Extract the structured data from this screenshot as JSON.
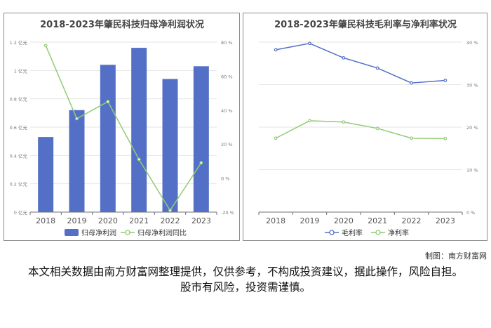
{
  "chart_data": [
    {
      "type": "bar+line",
      "title": "2018-2023年肇民科技归母净利润状况",
      "categories": [
        "2018",
        "2019",
        "2020",
        "2021",
        "2022",
        "2023"
      ],
      "series": [
        {
          "name": "归母净利润",
          "kind": "bar",
          "axis": "left",
          "values": [
            0.53,
            0.72,
            1.04,
            1.16,
            0.94,
            1.03
          ]
        },
        {
          "name": "归母净利润同比",
          "kind": "line",
          "axis": "right",
          "values": [
            78,
            35,
            45,
            11,
            -19,
            9
          ]
        }
      ],
      "ylim_left": [
        0,
        1.2
      ],
      "yticks_left": [
        "0 亿元",
        "0.2 亿元",
        "0.4 亿元",
        "0.6 亿元",
        "0.8 亿元",
        "1 亿元",
        "1.2 亿元"
      ],
      "ylim_right": [
        -20,
        80
      ],
      "yticks_right": [
        "-20 %",
        "0 %",
        "20 %",
        "40 %",
        "60 %",
        "80 %"
      ],
      "colors": {
        "bar": "#5470c6",
        "line": "#91cc75"
      },
      "legend": "bottom-center"
    },
    {
      "type": "line",
      "title": "2018-2023年肇民科技毛利率与净利率状况",
      "categories": [
        "2018",
        "2019",
        "2020",
        "2021",
        "2022",
        "2023"
      ],
      "series": [
        {
          "name": "毛利率",
          "values": [
            38.2,
            39.7,
            36.3,
            33.9,
            30.4,
            31.0
          ]
        },
        {
          "name": "净利率",
          "values": [
            17.4,
            21.5,
            21.2,
            19.7,
            17.4,
            17.3
          ]
        }
      ],
      "ylim": [
        0,
        40
      ],
      "yticks": [
        "0 %",
        "10 %",
        "20 %",
        "30 %",
        "40 %"
      ],
      "colors": {
        "毛利率": "#5470c6",
        "净利率": "#91cc75"
      },
      "legend": "bottom-center"
    }
  ],
  "credit": "制图：南方财富网",
  "disclaimer": "本文相关数据由南方财富网整理提供，仅供参考，不构成投资建议，据此操作，风险自担。股市有风险，投资需谨慎。"
}
